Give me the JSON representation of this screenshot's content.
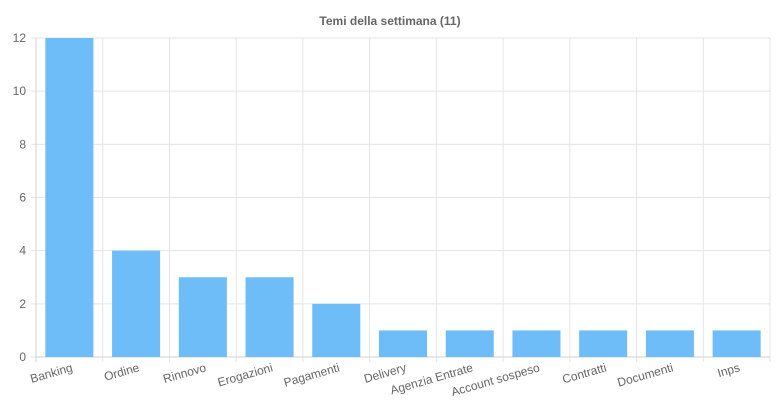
{
  "chart_data": {
    "type": "bar",
    "title": "Temi della settimana (11)",
    "categories": [
      "Banking",
      "Ordine",
      "Rinnovo",
      "Erogazioni",
      "Pagamenti",
      "Delivery",
      "Agenzia Entrate",
      "Account sospeso",
      "Contratti",
      "Documenti",
      "Inps"
    ],
    "values": [
      12,
      4,
      3,
      3,
      2,
      1,
      1,
      1,
      1,
      1,
      1
    ],
    "ylim": [
      0,
      12
    ],
    "yticks": [
      "0",
      "2",
      "4",
      "6",
      "8",
      "10",
      "12"
    ],
    "xlabel": "",
    "ylabel": "",
    "grid": true,
    "bar_color": "#6ebcf8"
  }
}
